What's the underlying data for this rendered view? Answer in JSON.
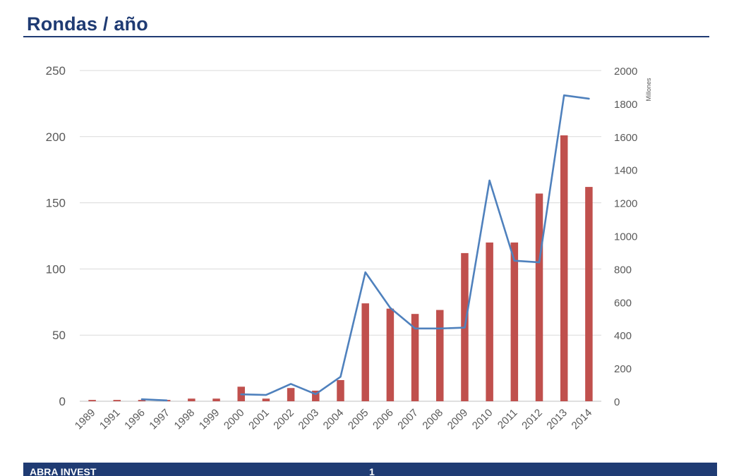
{
  "slide": {
    "title": "Rondas / año",
    "footer_brand": "ABRA INVEST",
    "page_number": "1"
  },
  "colors": {
    "title": "#1f3b73",
    "bars": "#c0504d",
    "line": "#4f81bd",
    "gridlines": "#d9d9d9",
    "axis_text": "#595959",
    "footer_bg": "#1f3b73"
  },
  "chart_data": {
    "type": "bar",
    "title": "",
    "categories": [
      "1989",
      "1991",
      "1996",
      "1997",
      "1998",
      "1999",
      "2000",
      "2001",
      "2002",
      "2003",
      "2004",
      "2005",
      "2006",
      "2007",
      "2008",
      "2009",
      "2010",
      "2011",
      "2012",
      "2013",
      "2014"
    ],
    "series": [
      {
        "type": "bar",
        "axis": "left",
        "values": [
          1,
          1,
          1,
          1,
          2,
          2,
          11,
          2,
          10,
          8,
          16,
          74,
          70,
          66,
          69,
          112,
          120,
          120,
          157,
          201,
          162
        ]
      },
      {
        "type": "line",
        "axis": "right",
        "values": [
          null,
          null,
          12,
          5,
          null,
          null,
          42,
          38,
          105,
          43,
          148,
          780,
          565,
          440,
          440,
          445,
          1335,
          850,
          840,
          1850,
          1830
        ]
      }
    ],
    "ylim": [
      0,
      250
    ],
    "yticks": [
      0,
      50,
      100,
      150,
      200,
      250
    ],
    "y2lim": [
      0,
      2000
    ],
    "y2ticks": [
      0,
      200,
      400,
      600,
      800,
      1000,
      1200,
      1400,
      1600,
      1800,
      2000
    ],
    "y2label": "Millones",
    "grid": true,
    "legend": "none"
  }
}
